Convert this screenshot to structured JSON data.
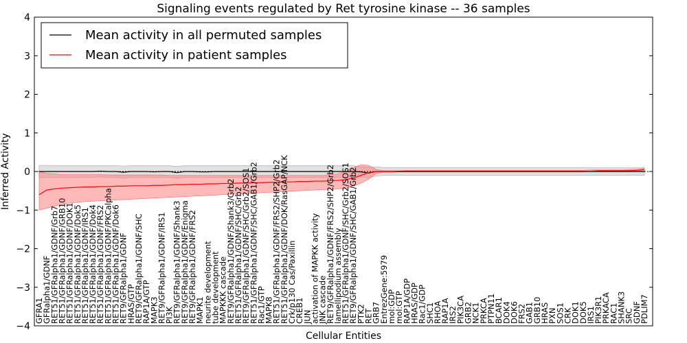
{
  "chart_data": {
    "type": "line",
    "title": "Signaling events regulated by Ret tyrosine kinase -- 36 samples",
    "xlabel": "Cellular Entities",
    "ylabel": "Inferred Activity",
    "ylim": [
      -4,
      4
    ],
    "yticks": [
      -4,
      -3,
      -2,
      -1,
      0,
      1,
      2,
      3,
      4
    ],
    "grid": false,
    "legend_position": "top-left",
    "categories": [
      "GFRA1",
      "GFRalpha1/GDNF",
      "RET51/GFRalpha1/GDNF/Grb7",
      "RET51/GFRalpha1/GDNF/GRB10",
      "RET51/GFRalpha1/GDNF/DOK1",
      "RET51/GFRalpha1/GDNF/Dok5",
      "RET51/GFRalpha1/GDNF/IRS1",
      "RET51/GFRalpha1/GDNF/Dok4",
      "RET51/GFRalpha1/GDNF/FRS2",
      "RET51/GFRalpha1/GDNF/PKCalpha",
      "RET51/GFRalpha1/GDNF/Dok6",
      "RET9/GFRalpha1/GDNF",
      "HRAS/GTP",
      "RET9/GFRalpha1/GDNF/SHC",
      "RAP1A/GTP",
      "MAPK3",
      "RET9/GFRalpha1/GDNF/IRS1",
      "PI3K",
      "RET9/GFRalpha1/GDNF/Shank3",
      "RET9/GFRalpha1/GDNF/Enigma",
      "RET9/GFRalpha1/GDNF/FRS2",
      "MAPK1",
      "neurite development",
      "tube development",
      "MAPKKK cascade",
      "RET9/GFRalpha1/GDNF/Shank3/Grb2",
      "RET51/GFRalpha1/GDNF/SHC/Grb2",
      "RET9/GFRalpha1/GDNF/SHC/Grb2/SOS1",
      "RET51/GFRalpha1/GDNF/SHC/GAB1/Grb2",
      "Rac1/GTP",
      "MAPK8",
      "RET51/GFRalpha1/GDNF/FRS2/SHP2/Grb2",
      "RET51/GFRalpha1/GDNF/DOK/RasGAP/NCK",
      "Crk/p130 Cas/Paxillin",
      "CREB1",
      "JUN",
      "activation of MAPKK activity",
      "JNK cascade",
      "RET9/GFRalpha1/GDNF/FRS2/SHP2/Grb2",
      "lamellipodium assembly",
      "RET51/GFRalpha1/GDNF/SHC/Grb2/SOS1",
      "RET9/GFRalpha1/GDNF/SHC/GAB1/Grb2",
      "PTK2",
      "RET",
      "GRB7",
      "EntrezGene:5979",
      "mol:GDP",
      "mol:GTP",
      "RAP1A/GDP",
      "HRAS/GDP",
      "Rac1/GDP",
      "SHC1",
      "RHOA",
      "RAP1A",
      "IRS2",
      "PIK3CA",
      "GRB2",
      "NCK1",
      "PRKCA",
      "PTPN11",
      "BCAR1",
      "DOK4",
      "DOK6",
      "FRS2",
      "GAB1",
      "GRB10",
      "HRAS",
      "PXN",
      "SOS1",
      "CRK",
      "DOK1",
      "DOK5",
      "IRS1",
      "PIK3R1",
      "PRKACA",
      "RAC1",
      "SHANK3",
      "SRC",
      "GDNF",
      "PDLIM7"
    ],
    "series": [
      {
        "name": "Mean activity in all permuted samples",
        "color": "#000000",
        "values": [
          0.0,
          0.0,
          0.0,
          0.0,
          0.0,
          0.0,
          0.0,
          0.0,
          0.01,
          0.0,
          0.0,
          -0.02,
          0.0,
          0.0,
          0.0,
          -0.01,
          0.0,
          0.0,
          -0.03,
          0.0,
          0.0,
          -0.01,
          -0.01,
          0.0,
          0.0,
          0.0,
          0.0,
          0.0,
          0.0,
          0.0,
          0.0,
          0.0,
          0.0,
          0.0,
          0.0,
          0.0,
          0.0,
          0.0,
          0.0,
          0.0,
          0.0,
          0.0,
          -0.01,
          -0.04,
          0.0,
          0.0,
          0.0,
          0.0,
          0.0,
          0.0,
          0.0,
          0.0,
          0.0,
          0.0,
          0.0,
          0.0,
          0.0,
          0.0,
          0.0,
          0.0,
          0.0,
          0.0,
          0.0,
          0.0,
          0.0,
          0.0,
          0.0,
          0.0,
          0.0,
          0.0,
          0.0,
          0.0,
          0.0,
          0.0,
          0.0,
          0.0,
          0.0,
          0.0,
          0.0,
          0.0
        ],
        "band_upper": [
          0.16,
          0.16,
          0.15,
          0.15,
          0.15,
          0.15,
          0.15,
          0.15,
          0.15,
          0.15,
          0.15,
          0.14,
          0.15,
          0.15,
          0.15,
          0.15,
          0.15,
          0.15,
          0.13,
          0.15,
          0.15,
          0.15,
          0.15,
          0.15,
          0.15,
          0.15,
          0.15,
          0.15,
          0.15,
          0.15,
          0.15,
          0.15,
          0.15,
          0.15,
          0.15,
          0.15,
          0.15,
          0.15,
          0.15,
          0.15,
          0.15,
          0.15,
          0.12,
          0.12,
          0.12,
          0.1,
          0.1,
          0.1,
          0.1,
          0.1,
          0.1,
          0.1,
          0.1,
          0.1,
          0.1,
          0.1,
          0.1,
          0.1,
          0.1,
          0.1,
          0.1,
          0.1,
          0.1,
          0.1,
          0.1,
          0.1,
          0.1,
          0.1,
          0.1,
          0.1,
          0.1,
          0.1,
          0.1,
          0.1,
          0.1,
          0.1,
          0.1,
          0.1,
          0.1,
          0.1
        ],
        "band_lower": [
          -0.15,
          -0.15,
          -0.15,
          -0.15,
          -0.15,
          -0.15,
          -0.15,
          -0.15,
          -0.14,
          -0.15,
          -0.15,
          -0.17,
          -0.15,
          -0.15,
          -0.15,
          -0.16,
          -0.15,
          -0.15,
          -0.18,
          -0.15,
          -0.15,
          -0.16,
          -0.16,
          -0.15,
          -0.15,
          -0.15,
          -0.15,
          -0.15,
          -0.15,
          -0.15,
          -0.15,
          -0.15,
          -0.15,
          -0.15,
          -0.15,
          -0.15,
          -0.15,
          -0.15,
          -0.15,
          -0.15,
          -0.15,
          -0.15,
          -0.14,
          -0.16,
          -0.12,
          -0.1,
          -0.1,
          -0.1,
          -0.1,
          -0.1,
          -0.1,
          -0.1,
          -0.1,
          -0.1,
          -0.1,
          -0.1,
          -0.1,
          -0.1,
          -0.1,
          -0.1,
          -0.1,
          -0.1,
          -0.1,
          -0.1,
          -0.1,
          -0.1,
          -0.1,
          -0.1,
          -0.1,
          -0.1,
          -0.1,
          -0.1,
          -0.1,
          -0.1,
          -0.1,
          -0.1,
          -0.1,
          -0.1,
          -0.1,
          -0.1
        ]
      },
      {
        "name": "Mean activity in patient samples",
        "color": "#ff0000",
        "values": [
          -0.6,
          -0.48,
          -0.45,
          -0.43,
          -0.42,
          -0.41,
          -0.4,
          -0.4,
          -0.39,
          -0.39,
          -0.38,
          -0.38,
          -0.37,
          -0.37,
          -0.37,
          -0.36,
          -0.36,
          -0.35,
          -0.34,
          -0.34,
          -0.33,
          -0.33,
          -0.32,
          -0.32,
          -0.31,
          -0.31,
          -0.3,
          -0.3,
          -0.29,
          -0.29,
          -0.28,
          -0.28,
          -0.27,
          -0.27,
          -0.26,
          -0.26,
          -0.25,
          -0.25,
          -0.24,
          -0.23,
          -0.21,
          -0.17,
          -0.1,
          -0.03,
          0.0,
          0.0,
          0.0,
          0.01,
          0.01,
          0.01,
          0.01,
          0.01,
          0.01,
          0.01,
          0.01,
          0.01,
          0.01,
          0.01,
          0.01,
          0.01,
          0.01,
          0.01,
          0.01,
          0.01,
          0.01,
          0.01,
          0.01,
          0.01,
          0.01,
          0.01,
          0.01,
          0.01,
          0.01,
          0.02,
          0.02,
          0.02,
          0.02,
          0.02,
          0.03,
          0.05
        ],
        "band_upper": [
          0.0,
          -0.05,
          -0.06,
          -0.08,
          -0.08,
          -0.08,
          -0.08,
          -0.08,
          -0.08,
          -0.09,
          -0.09,
          -0.09,
          -0.09,
          -0.09,
          -0.09,
          -0.09,
          -0.09,
          -0.1,
          -0.1,
          -0.1,
          -0.1,
          -0.1,
          -0.1,
          -0.1,
          -0.1,
          -0.1,
          -0.1,
          -0.1,
          -0.1,
          -0.1,
          -0.1,
          -0.1,
          -0.1,
          -0.1,
          -0.1,
          -0.1,
          -0.1,
          -0.1,
          -0.08,
          -0.06,
          0.0,
          0.1,
          0.18,
          0.16,
          0.05,
          0.02,
          0.02,
          0.02,
          0.03,
          0.03,
          0.03,
          0.03,
          0.03,
          0.03,
          0.03,
          0.03,
          0.03,
          0.03,
          0.03,
          0.03,
          0.03,
          0.03,
          0.03,
          0.03,
          0.03,
          0.03,
          0.03,
          0.03,
          0.03,
          0.03,
          0.03,
          0.03,
          0.04,
          0.04,
          0.04,
          0.04,
          0.04,
          0.05,
          0.06,
          0.08
        ],
        "band_lower": [
          -1.0,
          -0.95,
          -0.9,
          -0.85,
          -0.82,
          -0.8,
          -0.78,
          -0.77,
          -0.76,
          -0.75,
          -0.74,
          -0.73,
          -0.72,
          -0.71,
          -0.7,
          -0.69,
          -0.68,
          -0.67,
          -0.66,
          -0.65,
          -0.64,
          -0.63,
          -0.62,
          -0.61,
          -0.6,
          -0.59,
          -0.58,
          -0.57,
          -0.56,
          -0.55,
          -0.54,
          -0.53,
          -0.52,
          -0.51,
          -0.5,
          -0.49,
          -0.48,
          -0.47,
          -0.46,
          -0.45,
          -0.44,
          -0.38,
          -0.3,
          -0.2,
          -0.05,
          -0.02,
          -0.02,
          -0.01,
          -0.01,
          -0.01,
          -0.01,
          -0.01,
          -0.01,
          -0.01,
          -0.01,
          -0.01,
          -0.01,
          -0.01,
          -0.01,
          -0.01,
          -0.01,
          -0.01,
          -0.01,
          -0.01,
          -0.01,
          -0.01,
          -0.01,
          -0.01,
          -0.01,
          -0.01,
          -0.01,
          -0.01,
          0.0,
          0.0,
          0.0,
          0.0,
          0.0,
          0.0,
          0.0,
          0.01
        ]
      }
    ]
  }
}
